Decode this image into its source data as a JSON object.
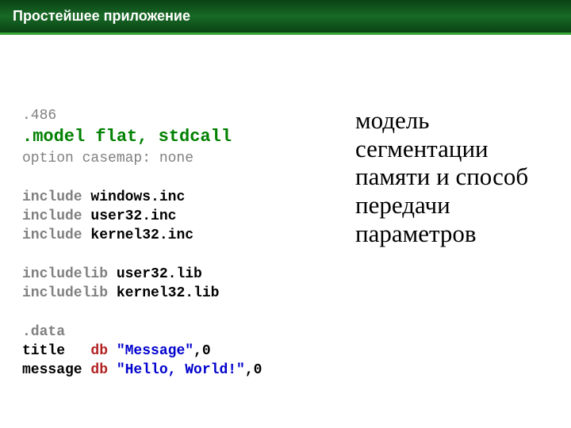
{
  "header": {
    "title": "Простейшее приложение"
  },
  "code": {
    "c1": {
      "t": ".486",
      "cls": "gray"
    },
    "c2": {
      "t": ".model flat, stdcall",
      "cls": "greenb"
    },
    "c3": {
      "t": "option casemap: none",
      "cls": "gray"
    },
    "c4": {
      "t": " ",
      "cls": "gray"
    },
    "c5a": {
      "t": "include",
      "cls": "grayb"
    },
    "c5b": {
      "t": " windows.inc",
      "cls": "blackb"
    },
    "c6a": {
      "t": "include",
      "cls": "grayb"
    },
    "c6b": {
      "t": " user32.inc",
      "cls": "blackb"
    },
    "c7a": {
      "t": "include",
      "cls": "grayb"
    },
    "c7b": {
      "t": " kernel32.inc",
      "cls": "blackb"
    },
    "c8": {
      "t": " ",
      "cls": "gray"
    },
    "c9a": {
      "t": "includelib",
      "cls": "grayb"
    },
    "c9b": {
      "t": " user32.lib",
      "cls": "blackb"
    },
    "c10a": {
      "t": "includelib",
      "cls": "grayb"
    },
    "c10b": {
      "t": " kernel32.lib",
      "cls": "blackb"
    },
    "c11": {
      "t": " ",
      "cls": "gray"
    },
    "c12": {
      "t": ".data",
      "cls": "grayb"
    },
    "c13a": {
      "t": "title   ",
      "cls": "blackb"
    },
    "c13b": {
      "t": "db ",
      "cls": "redb"
    },
    "c13c": {
      "t": "\"Message\"",
      "cls": "bluebr"
    },
    "c13d": {
      "t": ",0",
      "cls": "blackb"
    },
    "c14a": {
      "t": "message ",
      "cls": "blackb"
    },
    "c14b": {
      "t": "db ",
      "cls": "redb"
    },
    "c14c": {
      "t": "\"Hello, World!\"",
      "cls": "bluebr"
    },
    "c14d": {
      "t": ",0",
      "cls": "blackb"
    }
  },
  "description": "модель сегментации памяти и способ передачи параметров",
  "colors": {
    "header_bg": "#0f5a1c",
    "header_border": "#37a837",
    "gray": "#808080",
    "green": "#008000",
    "red": "#b22222",
    "blue": "#0000cd",
    "black": "#000000",
    "white": "#ffffff"
  }
}
